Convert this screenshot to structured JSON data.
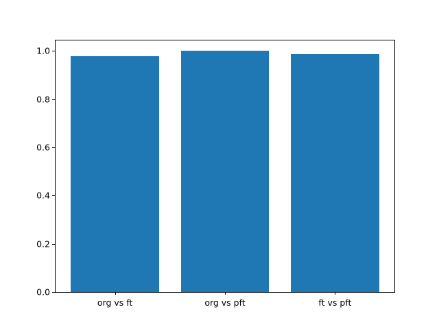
{
  "chart_data": {
    "type": "bar",
    "title": "",
    "xlabel": "",
    "ylabel": "",
    "categories": [
      "org vs ft",
      "org vs pft",
      "ft vs pft"
    ],
    "values": [
      0.979,
      0.999,
      0.985
    ],
    "bar_color": "#1f77b4",
    "bar_width_fraction": 0.8,
    "ylim": [
      0,
      1.043
    ],
    "yticks": [
      0.0,
      0.2,
      0.4,
      0.6,
      0.8,
      1.0
    ],
    "ytick_labels": [
      "0.0",
      "0.2",
      "0.4",
      "0.6",
      "0.8",
      "1.0"
    ],
    "grid": false,
    "legend": null,
    "axes_frame_color": "#000000",
    "background_color": "#ffffff"
  }
}
